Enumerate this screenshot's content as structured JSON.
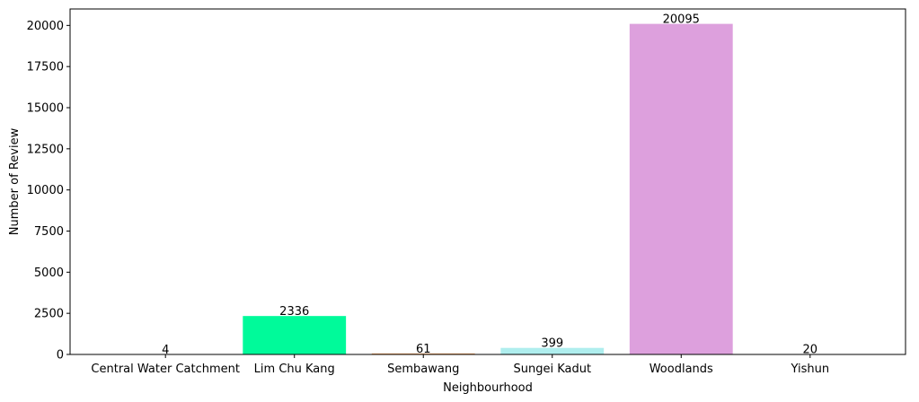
{
  "chart_data": {
    "type": "bar",
    "categories": [
      "Central Water Catchment",
      "Lim Chu Kang",
      "Sembawang",
      "Sungei Kadut",
      "Woodlands",
      "Yishun"
    ],
    "values": [
      4,
      2336,
      61,
      399,
      20095,
      20
    ],
    "data_labels": [
      "4",
      "2336",
      "61",
      "399",
      "20095",
      "20"
    ],
    "colors": [
      "#e8a0b8",
      "#00fa9a",
      "#f4a460",
      "#afeeee",
      "#dda0dd",
      "#b0c4de"
    ],
    "xlabel": "Neighbourhood",
    "ylabel": "Number of Review",
    "ylim": [
      0,
      21000
    ],
    "yticks": [
      0,
      2500,
      5000,
      7500,
      10000,
      12500,
      15000,
      17500,
      20000
    ],
    "grid": false,
    "legend": "none"
  }
}
